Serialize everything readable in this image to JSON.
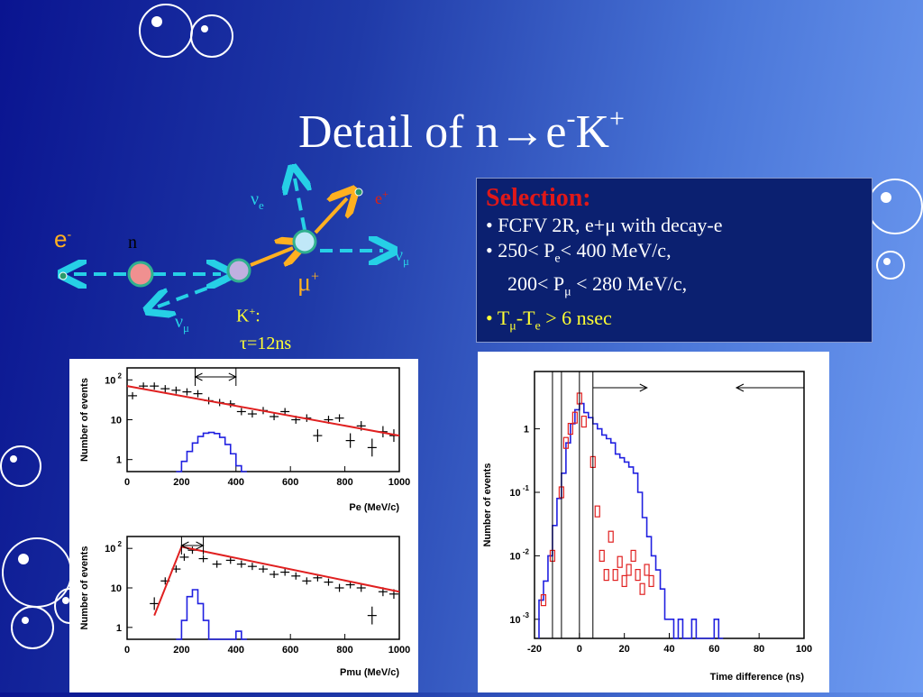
{
  "title": {
    "main": "Detail of n",
    "arrow": "→",
    "e": "e",
    "e_sup": "-",
    "k": "K",
    "k_sup": "+"
  },
  "diagram": {
    "e_minus": "e",
    "e_minus_sup": "-",
    "n": "n",
    "nu": "ν",
    "sub_e": "e",
    "sub_mu": "μ",
    "e_plus": "e",
    "e_plus_sup": "+",
    "mu": "μ",
    "mu_sup": "+",
    "kplus": "K",
    "kplus_sup": "+",
    "kplus_colon": ":",
    "tau": "τ=12ns"
  },
  "selection": {
    "title": "Selection:",
    "line1": "• FCFV 2R, e+μ with decay-e",
    "line2_a": "• 250< P",
    "line2_sub": "e",
    "line2_b": "< 400 MeV/c,",
    "line3_a": "200< P",
    "line3_sub": "μ",
    "line3_b": " < 280 MeV/c,",
    "line4_a": "• T",
    "line4_sub1": "μ",
    "line4_b": "-T",
    "line4_sub2": "e",
    "line4_c": " > 6 nsec"
  },
  "chart_data": [
    {
      "type": "line",
      "xlabel": "Pe (MeV/c)",
      "ylabel": "Number of events",
      "xlim": [
        0,
        1000
      ],
      "ylim": [
        0.5,
        200
      ],
      "yscale": "log",
      "xticks": [
        "0",
        "200",
        "400",
        "600",
        "800",
        "1000"
      ],
      "yticks": [
        "1",
        "10",
        "10 2"
      ],
      "selection_window": [
        250,
        400
      ],
      "series": [
        {
          "color": "#000000",
          "style": "crosses",
          "x": [
            20,
            60,
            100,
            140,
            180,
            220,
            260,
            300,
            340,
            380,
            420,
            460,
            500,
            540,
            580,
            620,
            660,
            700,
            740,
            780,
            820,
            860,
            900,
            940,
            980
          ],
          "y": [
            40,
            70,
            70,
            60,
            55,
            50,
            45,
            30,
            27,
            25,
            16,
            14,
            17,
            12,
            16,
            10,
            11,
            4,
            10,
            11,
            3,
            7,
            2,
            5,
            4
          ]
        },
        {
          "color": "#e02020",
          "style": "line",
          "x": [
            0,
            1000
          ],
          "y": [
            70,
            4
          ]
        },
        {
          "color": "#2020e0",
          "style": "step",
          "x": [
            180,
            200,
            220,
            240,
            260,
            280,
            300,
            320,
            340,
            360,
            380,
            400,
            420
          ],
          "y": [
            0.5,
            0.9,
            1.6,
            2.6,
            3.8,
            4.6,
            4.8,
            4.5,
            3.6,
            2.4,
            1.4,
            0.7,
            0.5
          ]
        }
      ]
    },
    {
      "type": "line",
      "xlabel": "Pmu (MeV/c)",
      "ylabel": "Number of events",
      "xlim": [
        0,
        1000
      ],
      "ylim": [
        0.5,
        200
      ],
      "yscale": "log",
      "xticks": [
        "0",
        "200",
        "400",
        "600",
        "800",
        "1000"
      ],
      "yticks": [
        "1",
        "10",
        "10 2"
      ],
      "selection_window": [
        200,
        280
      ],
      "series": [
        {
          "color": "#000000",
          "style": "crosses",
          "x": [
            100,
            140,
            180,
            210,
            240,
            280,
            330,
            380,
            420,
            460,
            500,
            540,
            580,
            620,
            660,
            700,
            740,
            780,
            820,
            860,
            900,
            940,
            980
          ],
          "y": [
            4,
            15,
            30,
            60,
            90,
            55,
            40,
            50,
            40,
            35,
            30,
            22,
            25,
            20,
            15,
            18,
            14,
            10,
            12,
            10,
            2,
            8,
            7
          ]
        },
        {
          "color": "#e02020",
          "style": "line",
          "x": [
            100,
            200,
            1000
          ],
          "y": [
            2,
            110,
            8
          ]
        },
        {
          "color": "#2020e0",
          "style": "step",
          "x": [
            180,
            200,
            220,
            240,
            260,
            280,
            300,
            380,
            400,
            420
          ],
          "y": [
            0.5,
            1.5,
            6,
            9,
            4,
            1.5,
            0.5,
            0.5,
            0.8,
            0.5
          ]
        }
      ]
    },
    {
      "type": "line",
      "xlabel": "Time difference (ns)",
      "ylabel": "Number of events",
      "xlim": [
        -20,
        100
      ],
      "ylim": [
        0.0005,
        8
      ],
      "yscale": "log",
      "xticks": [
        "-20",
        "0",
        "20",
        "40",
        "60",
        "80",
        "100"
      ],
      "yticks": [
        "10 -3",
        "10 -2",
        "10 -1",
        "1"
      ],
      "selection_window": [
        6,
        100
      ],
      "series": [
        {
          "color": "#2020e0",
          "style": "step",
          "x": [
            -18,
            -16,
            -14,
            -12,
            -10,
            -8,
            -6,
            -4,
            -2,
            0,
            2,
            4,
            6,
            8,
            10,
            12,
            14,
            16,
            18,
            20,
            22,
            24,
            26,
            28,
            30,
            32,
            34,
            36,
            38,
            40,
            42,
            44,
            46,
            48,
            50,
            52,
            54,
            56,
            58,
            60,
            62
          ],
          "y": [
            0.002,
            0.004,
            0.01,
            0.03,
            0.08,
            0.2,
            0.6,
            1.2,
            2.0,
            2.5,
            1.8,
            1.5,
            1.2,
            1.0,
            0.8,
            0.7,
            0.6,
            0.4,
            0.35,
            0.3,
            0.25,
            0.2,
            0.1,
            0.04,
            0.02,
            0.01,
            0.006,
            0.003,
            0.001,
            0.001,
            0.0005,
            0.001,
            0.0005,
            0.0005,
            0.001,
            0.0005,
            0.0005,
            0.0005,
            0.0005,
            0.001,
            0.0005
          ]
        },
        {
          "color": "#e02020",
          "style": "boxes",
          "x": [
            -16,
            -12,
            -8,
            -6,
            -4,
            -2,
            0,
            2,
            6,
            8,
            10,
            12,
            14,
            16,
            18,
            20,
            22,
            24,
            26,
            28,
            30,
            32
          ],
          "y": [
            0.002,
            0.01,
            0.1,
            0.6,
            1.0,
            1.5,
            3.0,
            1.3,
            0.3,
            0.05,
            0.01,
            0.005,
            0.02,
            0.005,
            0.008,
            0.004,
            0.006,
            0.01,
            0.005,
            0.003,
            0.006,
            0.004
          ]
        }
      ]
    }
  ]
}
